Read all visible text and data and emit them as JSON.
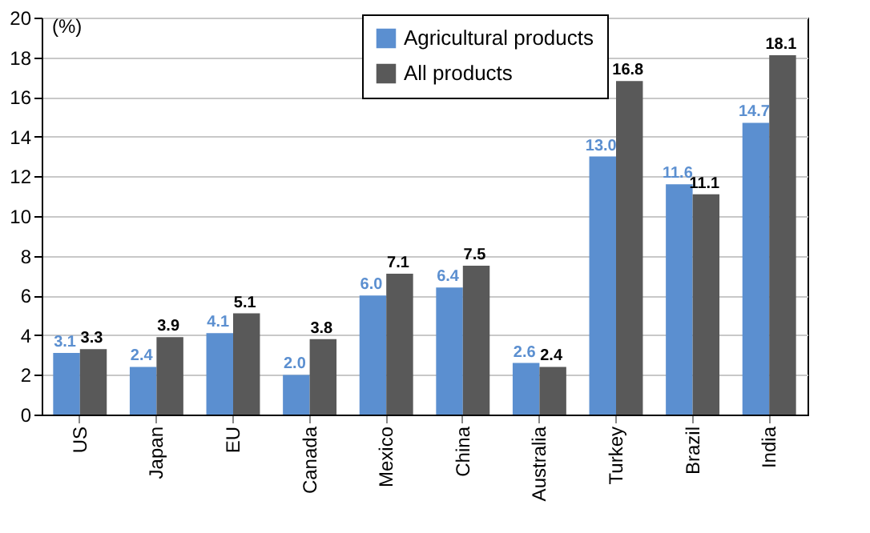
{
  "chart_data": {
    "type": "bar",
    "ylabel": "(%)",
    "categories": [
      "US",
      "Japan",
      "EU",
      "Canada",
      "Mexico",
      "China",
      "Australia",
      "Turkey",
      "Brazil",
      "India"
    ],
    "series": [
      {
        "name": "Agricultural products",
        "color": "#5b8fd0",
        "values": [
          3.1,
          2.4,
          4.1,
          2.0,
          6.0,
          6.4,
          2.6,
          13.0,
          11.6,
          14.7
        ],
        "value_labels": [
          "3.1",
          "2.4",
          "4.1",
          "2.0",
          "6.0",
          "6.4",
          "2.6",
          "13.0",
          "11.6",
          "14.7"
        ]
      },
      {
        "name": "All products",
        "color": "#595959",
        "values": [
          3.3,
          3.9,
          5.1,
          3.8,
          7.1,
          7.5,
          2.4,
          16.8,
          11.1,
          18.1
        ],
        "value_labels": [
          "3.3",
          "3.9",
          "5.1",
          "3.8",
          "7.1",
          "7.5",
          "2.4",
          "16.8",
          "11.1",
          "18.1"
        ]
      }
    ],
    "ylim": [
      0,
      20
    ],
    "yticks": [
      0,
      2,
      4,
      6,
      8,
      10,
      12,
      14,
      16,
      18,
      20
    ],
    "grid": "y",
    "legend": "top"
  }
}
